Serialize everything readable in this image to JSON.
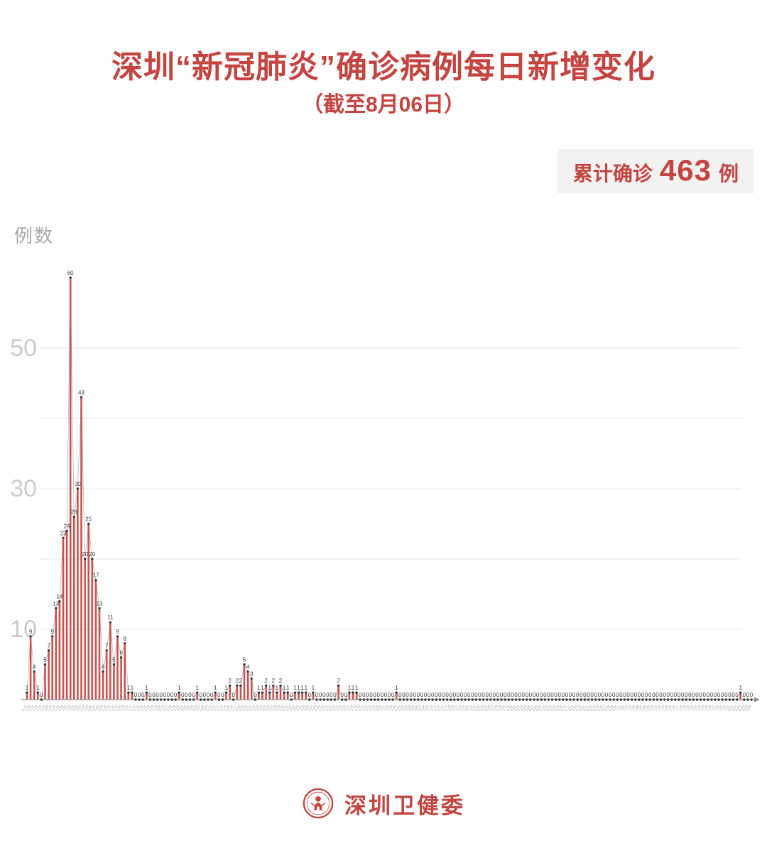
{
  "title": "深圳“新冠肺炎”确诊病例每日新增变化",
  "subtitle": "（截至8月06日）",
  "summary_badge": {
    "prefix": "累计确诊",
    "value": "463",
    "suffix": "例"
  },
  "footer": {
    "logo_text": "深圳卫健委"
  },
  "colors": {
    "accent": "#c5443f",
    "bar": "#cb524c",
    "dot": "#3a3a3a",
    "line": "#b9b9b9",
    "grid": "#e9e9e9",
    "tick_text": "#cbcbcb",
    "value_label": "#3a3a3a",
    "axis": "#8f8f8f",
    "date_label": "#9a9a9a",
    "badge_bg": "#f2f2f2"
  },
  "chart_data": {
    "type": "bar",
    "title": "深圳“新冠肺炎”确诊病例每日新增变化",
    "subtitle": "（截至8月06日）",
    "xlabel": "",
    "ylabel": "例数",
    "ylim": [
      0,
      62
    ],
    "y_ticks": [
      10,
      30,
      50
    ],
    "gridlines": [
      10,
      20,
      30,
      40,
      50
    ],
    "legend": "none",
    "cumulative_total": 463,
    "x_axis": {
      "start_month": 1,
      "start_day": 19,
      "end_month": 8,
      "end_day": 6,
      "year_days_per_month": {
        "1": 31,
        "2": 29,
        "3": 31,
        "4": 30,
        "5": 31,
        "6": 30,
        "7": 31,
        "8": 31
      }
    },
    "values": [
      1,
      9,
      4,
      1,
      0,
      5,
      7,
      9,
      13,
      14,
      23,
      24,
      60,
      26,
      30,
      43,
      20,
      25,
      20,
      17,
      13,
      4,
      7,
      11,
      5,
      9,
      6,
      8,
      1,
      1,
      0,
      0,
      0,
      1,
      0,
      0,
      0,
      0,
      0,
      0,
      0,
      0,
      1,
      0,
      0,
      0,
      0,
      1,
      0,
      0,
      0,
      0,
      1,
      0,
      0,
      1,
      2,
      0,
      2,
      2,
      5,
      4,
      3,
      0,
      1,
      1,
      2,
      1,
      2,
      1,
      2,
      1,
      1,
      0,
      1,
      1,
      1,
      1,
      0,
      1,
      0,
      0,
      0,
      0,
      0,
      0,
      2,
      0,
      0,
      1,
      1,
      1,
      0,
      0,
      0,
      0,
      0,
      0,
      0,
      0,
      0,
      0,
      1,
      0,
      0,
      0,
      0,
      0,
      0,
      0,
      0,
      0,
      0,
      0,
      0,
      0,
      0,
      0,
      0,
      0,
      0,
      0,
      0,
      0,
      0,
      0,
      0,
      0,
      0,
      0,
      0,
      0,
      0,
      0,
      0,
      0,
      0,
      0,
      0,
      0,
      0,
      0,
      0,
      0,
      0,
      0,
      0,
      0,
      0,
      0,
      0,
      0,
      0,
      0,
      0,
      0,
      0,
      0,
      0,
      0,
      0,
      0,
      0,
      0,
      0,
      0,
      0,
      0,
      0,
      0,
      0,
      0,
      0,
      0,
      0,
      0,
      0,
      0,
      0,
      0,
      0,
      0,
      0,
      0,
      0,
      0,
      0,
      0,
      0,
      0,
      0,
      0,
      0,
      0,
      0,
      0,
      0,
      1,
      0,
      0,
      0
    ]
  }
}
